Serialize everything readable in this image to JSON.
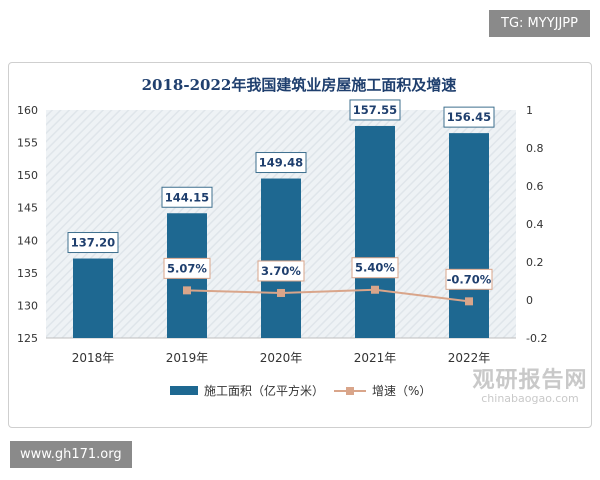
{
  "watermarks": {
    "top_right": "TG: MYYJJPP",
    "bottom_left": "www.gh171.org"
  },
  "brand": {
    "cn": "观研报告网",
    "en": "chinabaogao.com"
  },
  "chart_data": {
    "type": "bar",
    "title": "2018-2022年我国建筑业房屋施工面积及增速",
    "categories": [
      "2018年",
      "2019年",
      "2020年",
      "2021年",
      "2022年"
    ],
    "series": [
      {
        "name": "施工面积（亿平方米）",
        "type": "bar",
        "axis": "left",
        "values": [
          137.2,
          144.15,
          149.48,
          157.55,
          156.45
        ],
        "labels": [
          "137.20",
          "144.15",
          "149.48",
          "157.55",
          "156.45"
        ]
      },
      {
        "name": "增速（%）",
        "type": "line",
        "axis": "right",
        "values": [
          null,
          0.0507,
          0.037,
          0.054,
          -0.007
        ],
        "labels": [
          null,
          "5.07%",
          "3.70%",
          "5.40%",
          "-0.70%"
        ]
      }
    ],
    "y_left": {
      "min": 125,
      "max": 160,
      "ticks": [
        125,
        130,
        135,
        140,
        145,
        150,
        155,
        160
      ]
    },
    "y_right": {
      "min": -0.2,
      "max": 1,
      "ticks": [
        "-0.2",
        "0",
        "0.2",
        "0.4",
        "0.6",
        "0.8",
        "1"
      ],
      "values": [
        -0.2,
        0,
        0.2,
        0.4,
        0.6,
        0.8,
        1
      ]
    },
    "legend_position": "bottom",
    "colors": {
      "bar": "#1e6891",
      "line": "#d9a58a",
      "marker": "#d9a58a"
    }
  }
}
